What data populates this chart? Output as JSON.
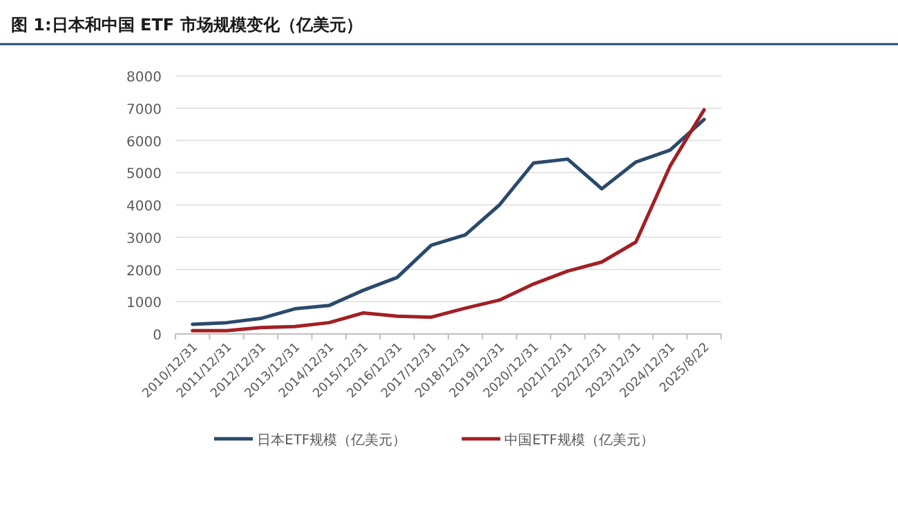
{
  "chart_data": {
    "type": "line",
    "title": "图 1:日本和中国 ETF 市场规模变化（亿美元）",
    "categories": [
      "2010/12/31",
      "2011/12/31",
      "2012/12/31",
      "2013/12/31",
      "2014/12/31",
      "2015/12/31",
      "2016/12/31",
      "2017/12/31",
      "2018/12/31",
      "2019/12/31",
      "2020/12/31",
      "2021/12/31",
      "2022/12/31",
      "2023/12/31",
      "2024/12/31",
      "2025/8/22"
    ],
    "series": [
      {
        "name": "日本ETF规模（亿美元）",
        "color": "#2a4a6b",
        "values": [
          300,
          350,
          480,
          780,
          880,
          1350,
          1750,
          2750,
          3070,
          4000,
          5300,
          5420,
          4500,
          5330,
          5700,
          6650
        ]
      },
      {
        "name": "中国ETF规模（亿美元）",
        "color": "#a31f24",
        "values": [
          100,
          100,
          200,
          230,
          350,
          650,
          550,
          520,
          800,
          1050,
          1550,
          1950,
          2230,
          2850,
          5200,
          6950
        ]
      }
    ],
    "ylim": [
      0,
      8000
    ],
    "yticks": [
      0,
      1000,
      2000,
      3000,
      4000,
      5000,
      6000,
      7000,
      8000
    ],
    "grid": "y",
    "legend": "bottom",
    "marker": "none",
    "line_style": "solid"
  }
}
